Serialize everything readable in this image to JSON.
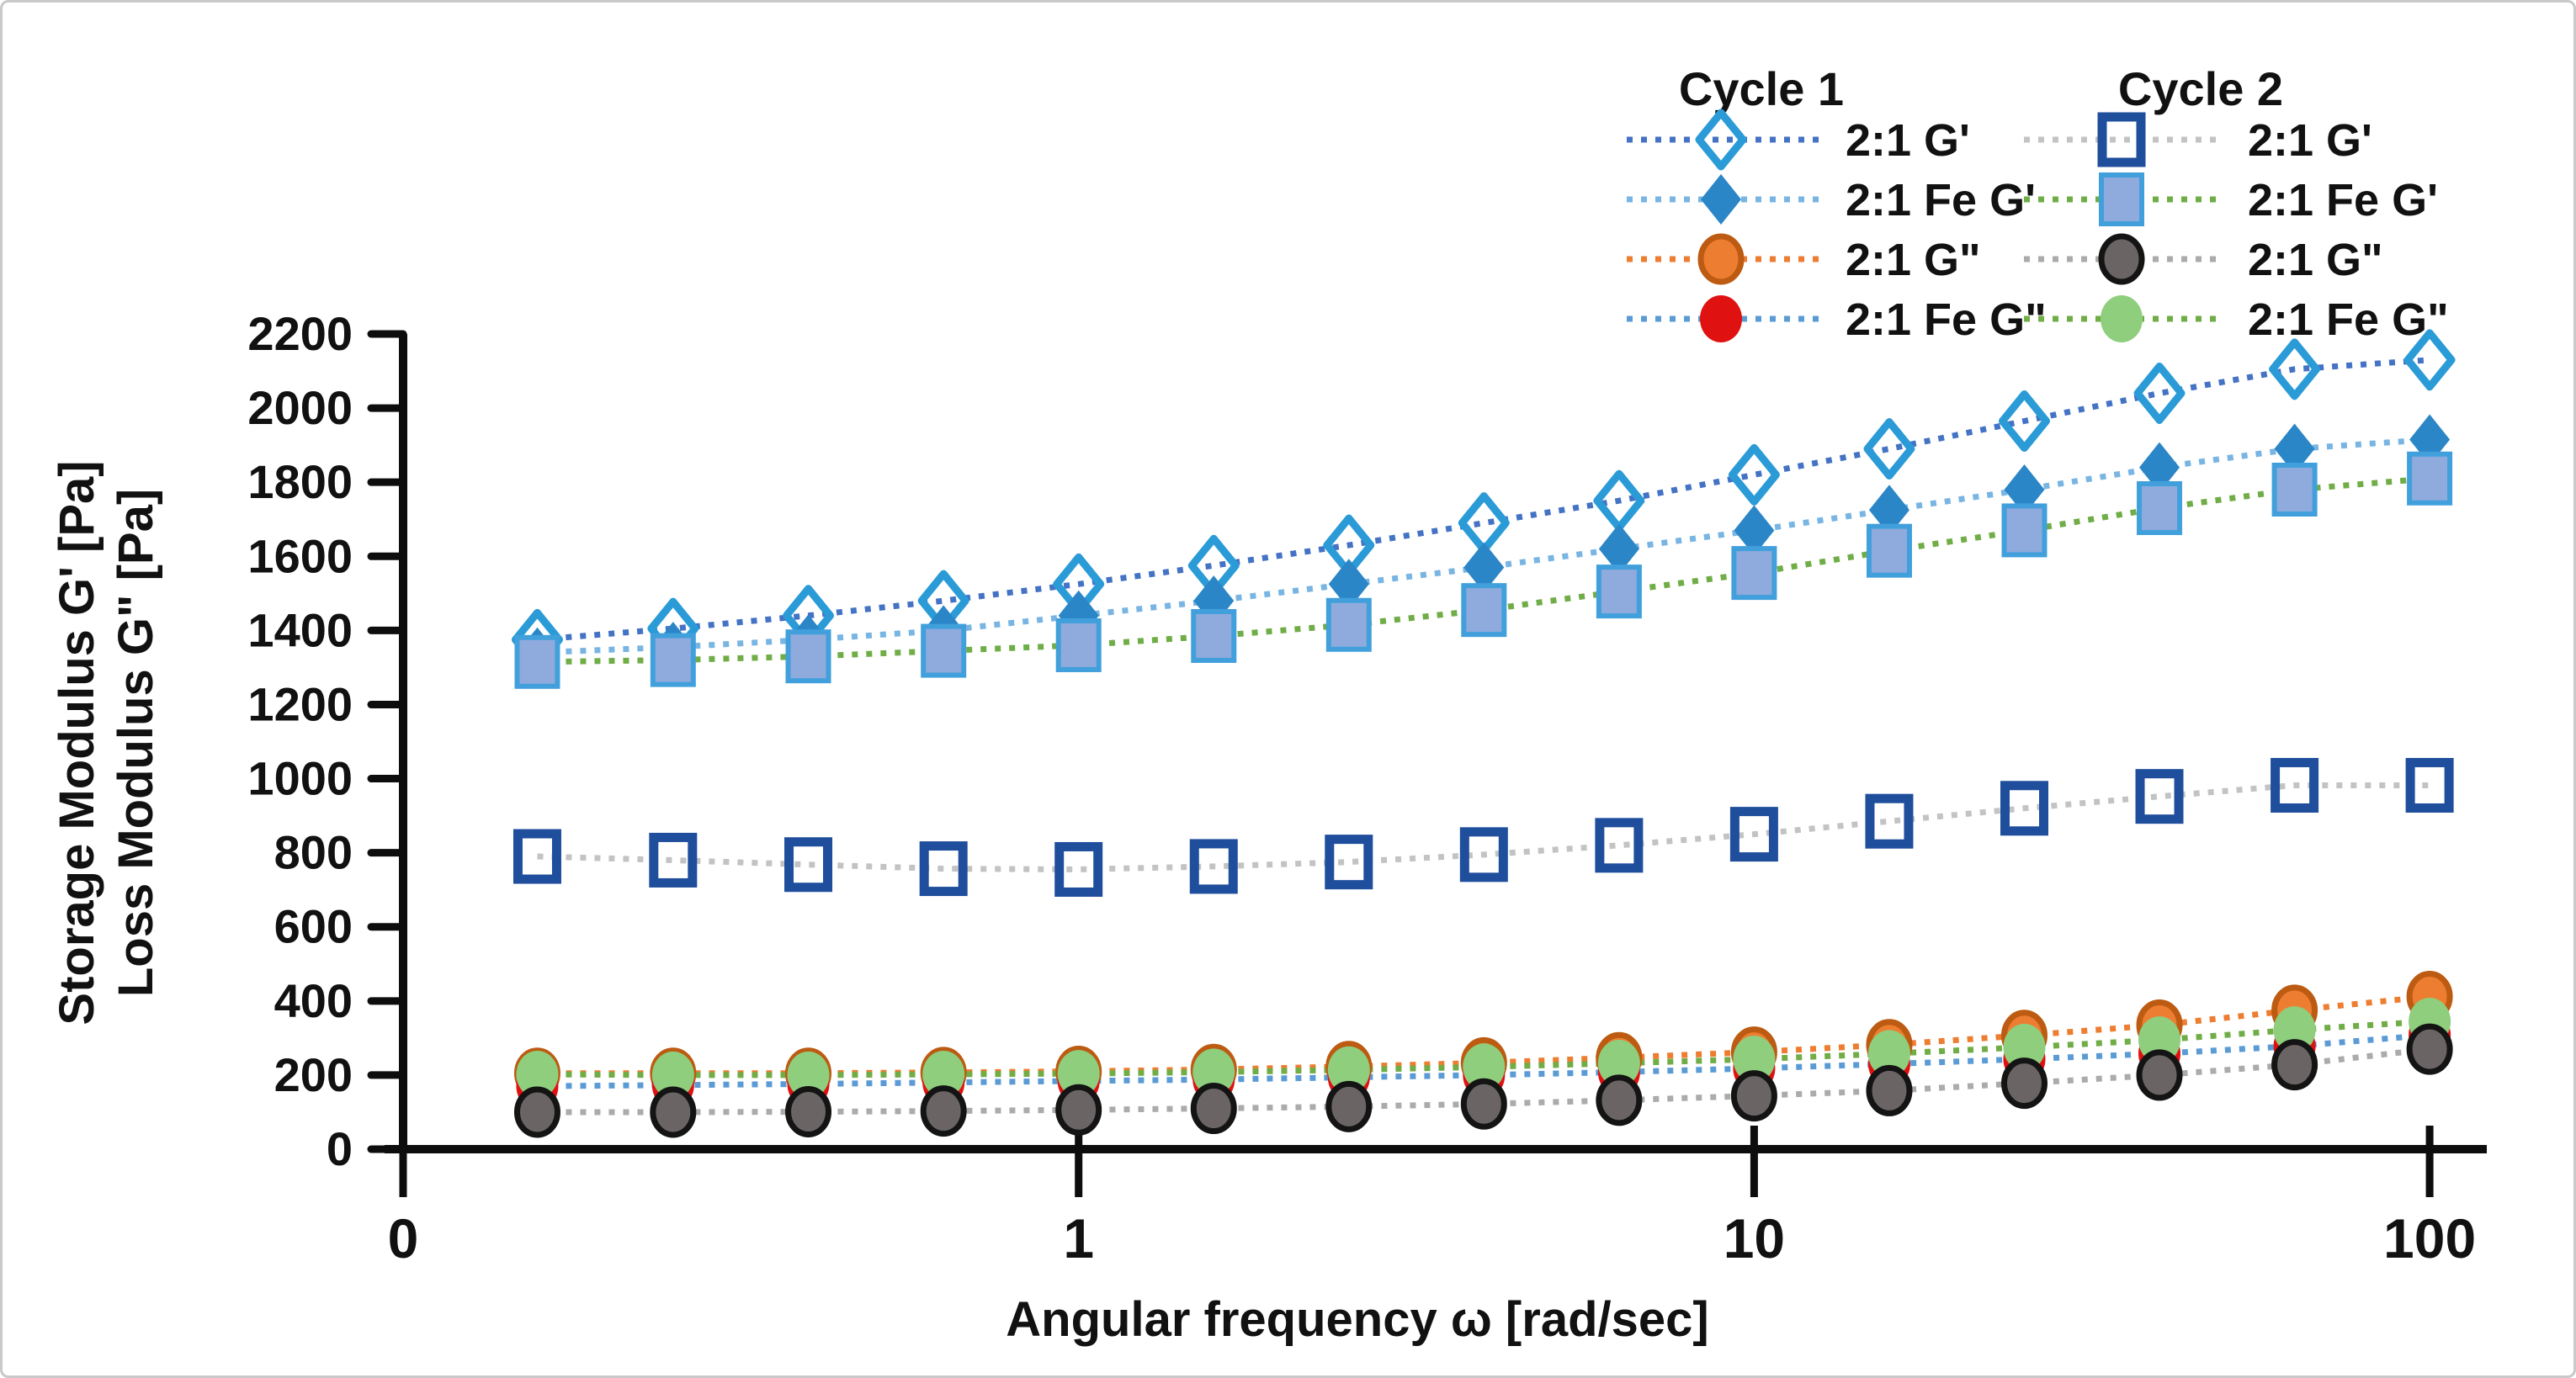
{
  "figure": {
    "border_color": "#c9c9c9",
    "background": "#ffffff"
  },
  "chart_data": {
    "type": "line",
    "title": "",
    "xlabel": "Angular frequency ω [rad/sec]",
    "ylabel_line1": "Storage Modulus G' [Pa]",
    "ylabel_line2": "Loss Modulus G\" [Pa]",
    "x_scale": "log",
    "xlim": [
      0.1,
      100
    ],
    "ylim": [
      0,
      2200
    ],
    "grid": "off",
    "legend_position": "top-right-inside",
    "x_tick_labels": [
      {
        "label": "0",
        "value": 0.1
      },
      {
        "label": "1",
        "value": 1
      },
      {
        "label": "10",
        "value": 10
      },
      {
        "label": "100",
        "value": 100
      }
    ],
    "y_ticks": [
      0,
      200,
      400,
      600,
      800,
      1000,
      1200,
      1400,
      1600,
      1800,
      2000,
      2200
    ],
    "x": [
      0.158,
      0.251,
      0.398,
      0.631,
      1,
      1.585,
      2.512,
      3.981,
      6.31,
      10,
      15.85,
      25.12,
      39.81,
      63.1,
      100
    ],
    "legend_groups": [
      "Cycle 1",
      "Cycle 2"
    ],
    "series": [
      {
        "id": "c1-gprime",
        "cycle": "Cycle 1",
        "label": "2:1 G'",
        "marker": "diamond-open",
        "fill": "none",
        "stroke": "#2b9bd7",
        "line_color": "#4472c4",
        "values": [
          1375,
          1405,
          1440,
          1480,
          1525,
          1575,
          1630,
          1690,
          1750,
          1820,
          1890,
          1965,
          2040,
          2105,
          2130
        ]
      },
      {
        "id": "c1-fe-gprime",
        "cycle": "Cycle 1",
        "label": "2:1 Fe G'",
        "marker": "diamond-fill",
        "fill": "#2b86c7",
        "stroke": "#2b86c7",
        "line_color": "#79b5e3",
        "values": [
          1340,
          1355,
          1375,
          1400,
          1440,
          1480,
          1525,
          1570,
          1620,
          1670,
          1725,
          1780,
          1840,
          1890,
          1915
        ]
      },
      {
        "id": "c1-gdbl",
        "cycle": "Cycle 1",
        "label": "2:1 G\"",
        "marker": "circle",
        "fill": "#ed7d31",
        "stroke": "#bc5b11",
        "line_color": "#ed7d31",
        "values": [
          205,
          205,
          205,
          207,
          210,
          215,
          223,
          233,
          247,
          262,
          282,
          307,
          335,
          375,
          412
        ]
      },
      {
        "id": "c1-fe-gdbl",
        "cycle": "Cycle 1",
        "label": "2:1 Fe G\"",
        "marker": "circle",
        "fill": "#e01111",
        "stroke": "none",
        "line_color": "#5b9bd5",
        "values": [
          170,
          173,
          176,
          180,
          184,
          188,
          194,
          200,
          208,
          218,
          230,
          243,
          258,
          278,
          308
        ]
      },
      {
        "id": "c2-gprime",
        "cycle": "Cycle 2",
        "label": "2:1 G'",
        "marker": "square-open",
        "fill": "none",
        "stroke": "#1f4e9c",
        "line_color": "#c3c3c3",
        "values": [
          790,
          780,
          768,
          757,
          755,
          763,
          775,
          795,
          820,
          850,
          885,
          920,
          952,
          982,
          982
        ]
      },
      {
        "id": "c2-fe-gprime",
        "cycle": "Cycle 2",
        "label": "2:1 Fe G'",
        "marker": "square-fill",
        "fill": "#8faadc",
        "stroke": "#41a0dc",
        "line_color": "#70ad47",
        "values": [
          1315,
          1320,
          1330,
          1345,
          1360,
          1385,
          1415,
          1455,
          1505,
          1555,
          1615,
          1670,
          1730,
          1780,
          1810
        ]
      },
      {
        "id": "c2-gdbl",
        "cycle": "Cycle 2",
        "label": "2:1 G\"",
        "marker": "circle",
        "fill": "#6b6464",
        "stroke": "#141414",
        "line_color": "#ababab",
        "values": [
          100,
          100,
          101,
          103,
          106,
          110,
          115,
          122,
          132,
          144,
          158,
          178,
          200,
          228,
          270
        ]
      },
      {
        "id": "c2-fe-gdbl",
        "cycle": "Cycle 2",
        "label": "2:1 Fe G\"",
        "marker": "circle",
        "fill": "#8ece7d",
        "stroke": "none",
        "line_color": "#70ad47",
        "values": [
          202,
          200,
          200,
          202,
          204,
          208,
          214,
          222,
          232,
          243,
          258,
          275,
          295,
          322,
          345
        ]
      }
    ]
  }
}
